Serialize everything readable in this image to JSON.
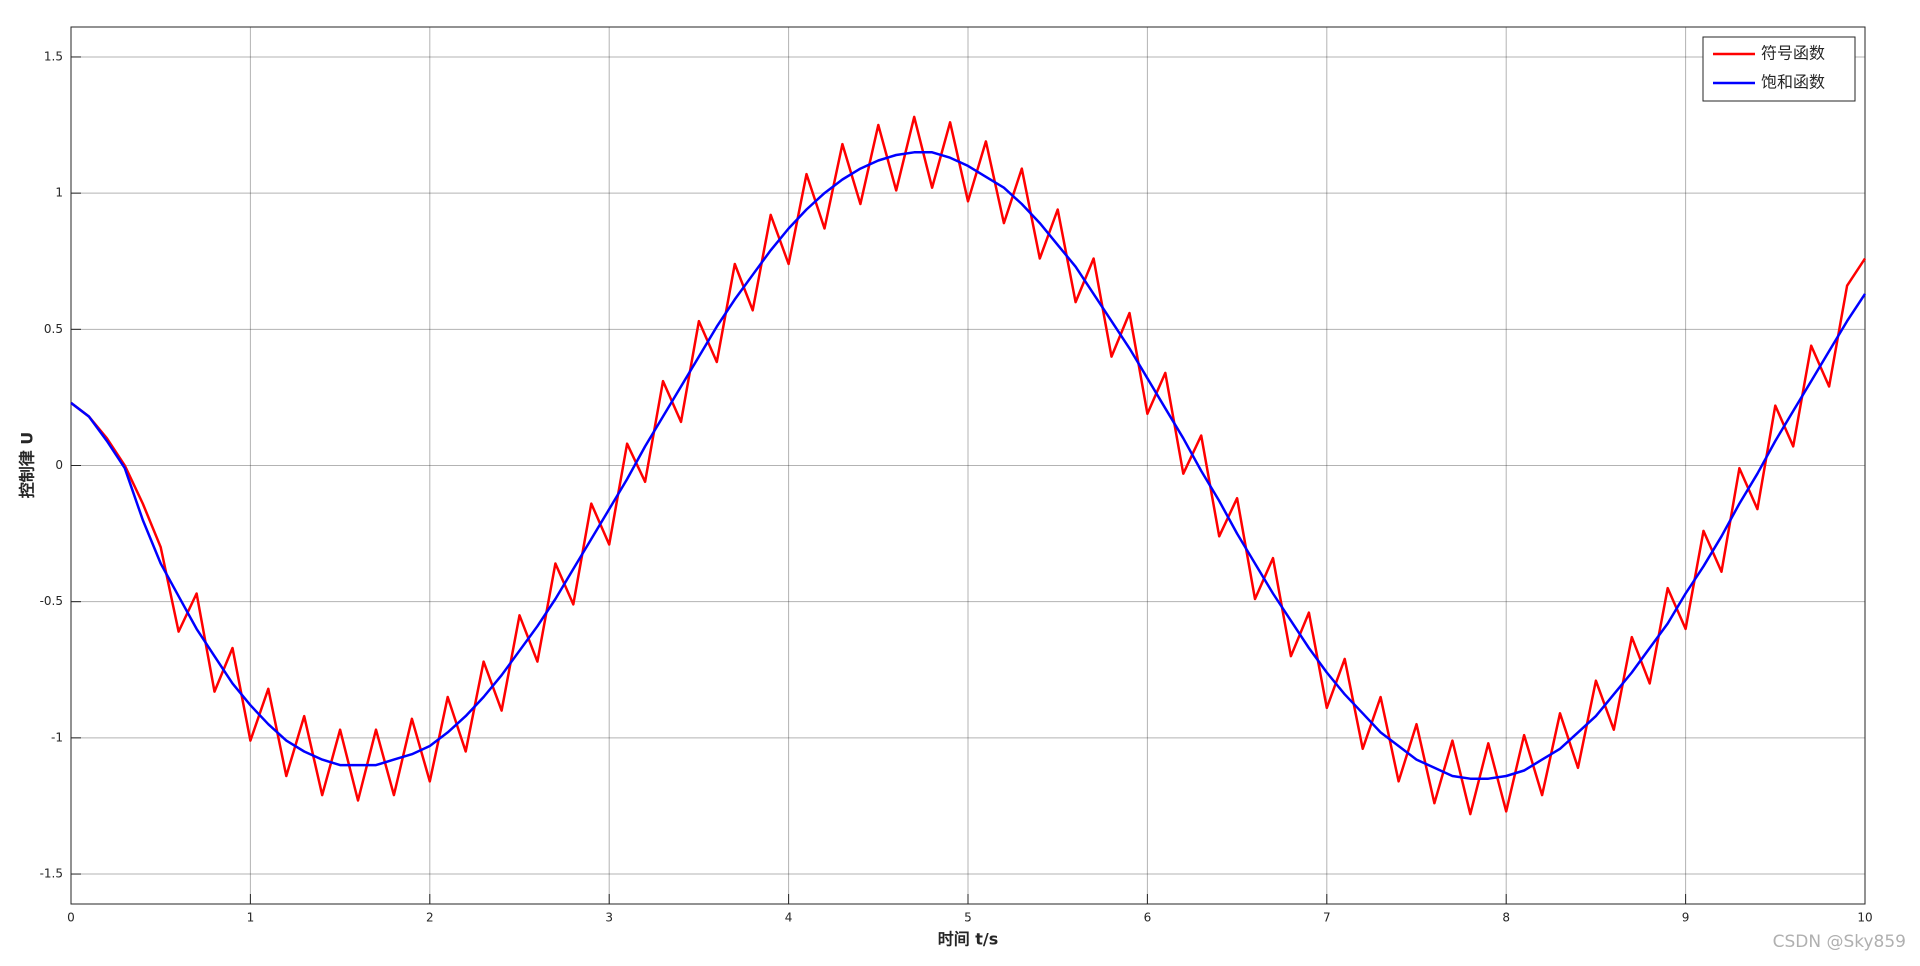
{
  "chart_data": {
    "type": "line",
    "xlabel": "时间 t/s",
    "ylabel": "控制律 U",
    "x": [
      0,
      0.1,
      0.2,
      0.3,
      0.4,
      0.5,
      0.6,
      0.7,
      0.8,
      0.9,
      1,
      1.1,
      1.2,
      1.3,
      1.4,
      1.5,
      1.6,
      1.7,
      1.8,
      1.9,
      2,
      2.1,
      2.2,
      2.3,
      2.4,
      2.5,
      2.6,
      2.7,
      2.8,
      2.9,
      3,
      3.1,
      3.2,
      3.3,
      3.4,
      3.5,
      3.6,
      3.7,
      3.8,
      3.9,
      4,
      4.1,
      4.2,
      4.3,
      4.4,
      4.5,
      4.6,
      4.7,
      4.8,
      4.9,
      5,
      5.1,
      5.2,
      5.3,
      5.4,
      5.5,
      5.6,
      5.7,
      5.8,
      5.9,
      6,
      6.1,
      6.2,
      6.3,
      6.4,
      6.5,
      6.6,
      6.7,
      6.8,
      6.9,
      7,
      7.1,
      7.2,
      7.3,
      7.4,
      7.5,
      7.6,
      7.7,
      7.8,
      7.9,
      8,
      8.1,
      8.2,
      8.3,
      8.4,
      8.5,
      8.6,
      8.7,
      8.8,
      8.9,
      9,
      9.1,
      9.2,
      9.3,
      9.4,
      9.5,
      9.6,
      9.7,
      9.8,
      9.9,
      10
    ],
    "series": [
      {
        "name": "符号函数",
        "color": "#ff0000",
        "values": [
          0.23,
          0.18,
          0.1,
          0.0,
          -0.14,
          -0.3,
          -0.61,
          -0.47,
          -0.83,
          -0.67,
          -1.01,
          -0.82,
          -1.14,
          -0.92,
          -1.21,
          -0.97,
          -1.23,
          -0.97,
          -1.21,
          -0.93,
          -1.16,
          -0.85,
          -1.05,
          -0.72,
          -0.9,
          -0.55,
          -0.72,
          -0.36,
          -0.51,
          -0.14,
          -0.29,
          0.08,
          -0.06,
          0.31,
          0.16,
          0.53,
          0.38,
          0.74,
          0.57,
          0.92,
          0.74,
          1.07,
          0.87,
          1.18,
          0.96,
          1.25,
          1.01,
          1.28,
          1.02,
          1.26,
          0.97,
          1.19,
          0.89,
          1.09,
          0.76,
          0.94,
          0.6,
          0.76,
          0.4,
          0.56,
          0.19,
          0.34,
          -0.03,
          0.11,
          -0.26,
          -0.12,
          -0.49,
          -0.34,
          -0.7,
          -0.54,
          -0.89,
          -0.71,
          -1.04,
          -0.85,
          -1.16,
          -0.95,
          -1.24,
          -1.01,
          -1.28,
          -1.02,
          -1.27,
          -0.99,
          -1.21,
          -0.91,
          -1.11,
          -0.79,
          -0.97,
          -0.63,
          -0.8,
          -0.45,
          -0.6,
          -0.24,
          -0.39,
          -0.01,
          -0.16,
          0.22,
          0.07,
          0.44,
          0.29,
          0.66,
          0.76
        ]
      },
      {
        "name": "饱和函数",
        "color": "#0000ff",
        "values": [
          0.23,
          0.18,
          0.09,
          -0.01,
          -0.2,
          -0.36,
          -0.48,
          -0.6,
          -0.7,
          -0.8,
          -0.88,
          -0.95,
          -1.01,
          -1.05,
          -1.08,
          -1.1,
          -1.1,
          -1.1,
          -1.08,
          -1.06,
          -1.03,
          -0.98,
          -0.92,
          -0.85,
          -0.77,
          -0.68,
          -0.59,
          -0.49,
          -0.38,
          -0.27,
          -0.16,
          -0.05,
          0.07,
          0.18,
          0.29,
          0.4,
          0.51,
          0.61,
          0.7,
          0.79,
          0.87,
          0.94,
          1.0,
          1.05,
          1.09,
          1.12,
          1.14,
          1.15,
          1.15,
          1.13,
          1.1,
          1.06,
          1.02,
          0.96,
          0.89,
          0.81,
          0.73,
          0.63,
          0.53,
          0.43,
          0.32,
          0.21,
          0.1,
          -0.02,
          -0.13,
          -0.25,
          -0.36,
          -0.47,
          -0.57,
          -0.67,
          -0.76,
          -0.84,
          -0.91,
          -0.98,
          -1.03,
          -1.08,
          -1.11,
          -1.14,
          -1.15,
          -1.15,
          -1.14,
          -1.12,
          -1.08,
          -1.04,
          -0.98,
          -0.92,
          -0.84,
          -0.76,
          -0.67,
          -0.58,
          -0.47,
          -0.37,
          -0.26,
          -0.14,
          -0.03,
          0.09,
          0.2,
          0.31,
          0.42,
          0.53,
          0.63
        ]
      }
    ],
    "xlim": [
      0,
      10
    ],
    "xticks": [
      0,
      1,
      2,
      3,
      4,
      5,
      6,
      7,
      8,
      9,
      10
    ],
    "ylim": [
      -1.61,
      1.61
    ],
    "yticks": [
      -1.5,
      -1,
      -0.5,
      0,
      0.5,
      1,
      1.5
    ],
    "grid": true,
    "legend": "northeast",
    "watermark": "CSDN @Sky859"
  }
}
